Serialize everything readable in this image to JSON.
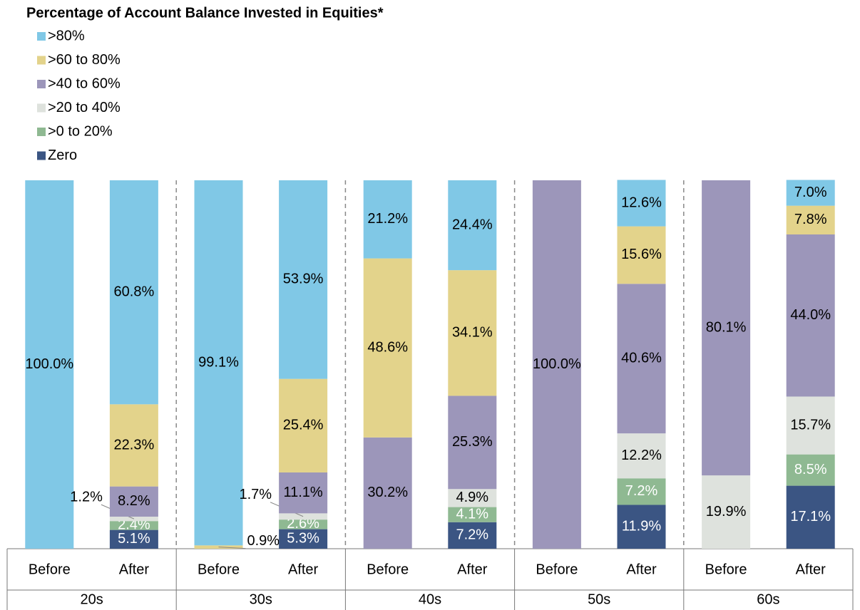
{
  "chart_data": {
    "type": "stacked_bar",
    "title": "Percentage of Account Balance Invested in Equities*",
    "categories": [
      "Before",
      "After",
      "Before",
      "After",
      "Before",
      "After",
      "Before",
      "After",
      "Before",
      "After"
    ],
    "groups": [
      "20s",
      "30s",
      "40s",
      "50s",
      "60s"
    ],
    "ylim": [
      0,
      100
    ],
    "series": [
      {
        "name": ">80%",
        "color": "#80c8e6",
        "values": [
          100.0,
          60.8,
          99.1,
          53.9,
          21.2,
          24.4,
          null,
          12.6,
          null,
          7.0
        ],
        "value_labels": [
          "100.0%",
          "60.8%",
          "99.1%",
          "53.9%",
          "21.2%",
          "24.4%",
          null,
          "12.6%",
          null,
          "7.0%"
        ]
      },
      {
        "name": ">60 to 80%",
        "color": "#e3d38b",
        "values": [
          null,
          22.3,
          0.9,
          25.4,
          48.6,
          34.1,
          null,
          15.6,
          null,
          7.8
        ],
        "value_labels": [
          null,
          "22.3%",
          "0.9%",
          "25.4%",
          "48.6%",
          "34.1%",
          null,
          "15.6%",
          null,
          "7.8%"
        ]
      },
      {
        "name": ">40 to 60%",
        "color": "#9c96ba",
        "values": [
          null,
          8.2,
          null,
          11.1,
          30.2,
          25.3,
          100.0,
          40.6,
          80.1,
          44.0
        ],
        "value_labels": [
          null,
          "8.2%",
          null,
          "11.1%",
          "30.2%",
          "25.3%",
          "100.0%",
          "40.6%",
          "80.1%",
          "44.0%"
        ]
      },
      {
        "name": ">20 to 40%",
        "color": "#dee2dd",
        "values": [
          null,
          1.2,
          null,
          1.7,
          null,
          4.9,
          null,
          12.2,
          19.9,
          15.7
        ],
        "value_labels": [
          null,
          "1.2%",
          null,
          "1.7%",
          null,
          "4.9%",
          null,
          "12.2%",
          "19.9%",
          "15.7%"
        ]
      },
      {
        "name": ">0 to 20%",
        "color": "#8fb992",
        "values": [
          null,
          2.4,
          null,
          2.6,
          null,
          4.1,
          null,
          7.2,
          null,
          8.5
        ],
        "value_labels": [
          null,
          "2.4%",
          null,
          "2.6%",
          null,
          "4.1%",
          null,
          "7.2%",
          null,
          "8.5%"
        ]
      },
      {
        "name": "Zero",
        "color": "#3b5583",
        "values": [
          null,
          5.1,
          null,
          5.3,
          null,
          7.2,
          null,
          11.9,
          null,
          17.1
        ],
        "value_labels": [
          null,
          "5.1%",
          null,
          "5.3%",
          null,
          "7.2%",
          null,
          "11.9%",
          null,
          "17.1%"
        ]
      }
    ]
  }
}
